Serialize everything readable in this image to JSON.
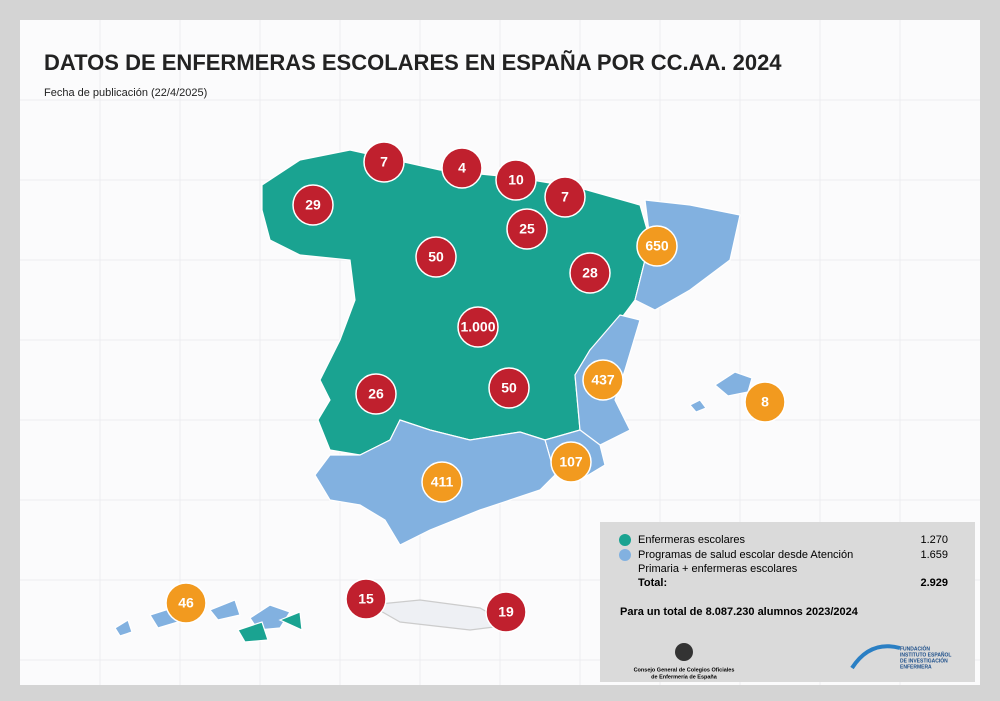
{
  "header": {
    "title": "DATOS DE ENFERMERAS ESCOLARES EN ESPAÑA POR CC.AA. 2024",
    "subtitle": "Fecha de publicación (22/4/2025)"
  },
  "regions": [
    {
      "label": "7",
      "color": "#c0202e"
    },
    {
      "label": "4",
      "color": "#c0202e"
    },
    {
      "label": "10",
      "color": "#c0202e"
    },
    {
      "label": "7",
      "color": "#c0202e"
    },
    {
      "label": "29",
      "color": "#c0202e"
    },
    {
      "label": "25",
      "color": "#c0202e"
    },
    {
      "label": "650",
      "color": "#f29a1f"
    },
    {
      "label": "50",
      "color": "#c0202e"
    },
    {
      "label": "28",
      "color": "#c0202e"
    },
    {
      "label": "1.000",
      "color": "#c0202e"
    },
    {
      "label": "437",
      "color": "#f29a1f"
    },
    {
      "label": "8",
      "color": "#f29a1f"
    },
    {
      "label": "26",
      "color": "#c0202e"
    },
    {
      "label": "50",
      "color": "#c0202e"
    },
    {
      "label": "107",
      "color": "#f29a1f"
    },
    {
      "label": "411",
      "color": "#f29a1f"
    },
    {
      "label": "46",
      "color": "#f29a1f"
    },
    {
      "label": "15",
      "color": "#c0202e"
    },
    {
      "label": "19",
      "color": "#c0202e"
    }
  ],
  "legend": {
    "items": [
      {
        "label": "Enfermeras escolares",
        "value": "1.270",
        "color": "#1aa391"
      },
      {
        "label": [
          "Programas de salud escolar desde Atención",
          "Primaria + enfermeras escolares"
        ],
        "value": "1.659",
        "color": "#82b1e0"
      }
    ],
    "total_label": "Total:",
    "total_value": "2.929",
    "note": "Para un total de 8.087.230 alumnos 2023/2024"
  },
  "logos": {
    "left": [
      "Consejo General de Colegios Oficiales",
      "de Enfermería de España"
    ],
    "right": [
      "FUNDACIÓN",
      "INSTITUTO ESPAÑOL",
      "DE INVESTIGACIÓN",
      "ENFERMERA"
    ]
  }
}
